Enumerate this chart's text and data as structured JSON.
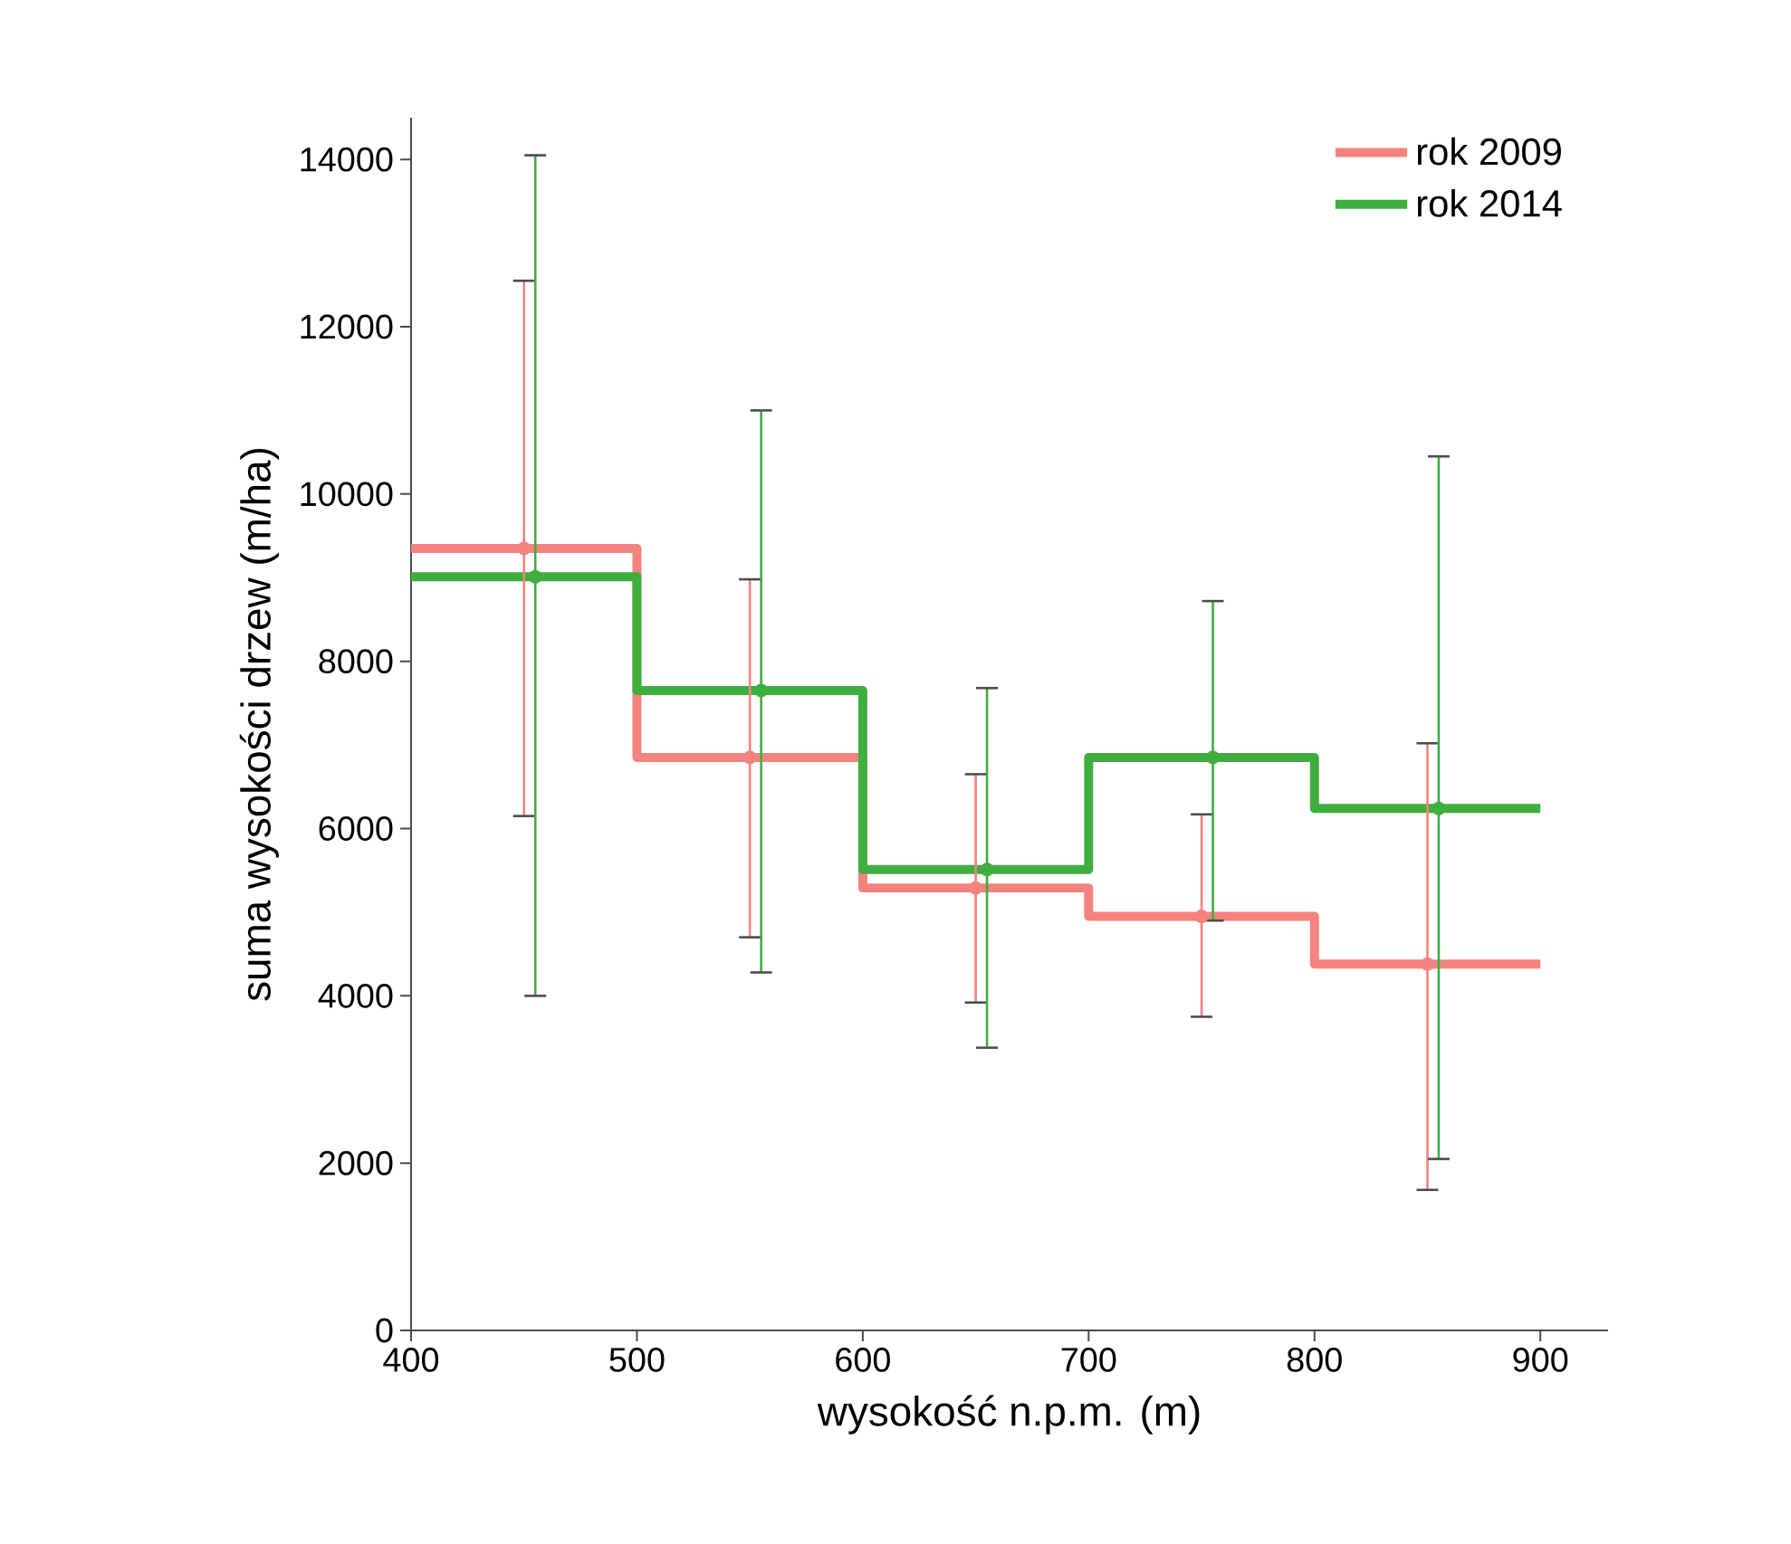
{
  "chart_data": {
    "type": "step",
    "xlabel": "wysokość n.p.m. (m)",
    "ylabel": "suma wysokości drzew (m/ha)",
    "xlim": [
      400,
      930
    ],
    "ylim": [
      0,
      14500
    ],
    "xticks": [
      400,
      500,
      600,
      700,
      800,
      900
    ],
    "yticks": [
      0,
      2000,
      4000,
      6000,
      8000,
      10000,
      12000,
      14000
    ],
    "grid": false,
    "legend": "top right",
    "line_style": "solid",
    "series": [
      {
        "name": "rok 2009",
        "color": "#f4837d",
        "x": [
          400,
          500,
          600,
          700,
          800,
          900
        ],
        "values": [
          9350,
          6850,
          5290,
          4950,
          4380,
          4380
        ]
      },
      {
        "name": "rok 2014",
        "color": "#3fae3f",
        "x": [
          400,
          500,
          600,
          700,
          800,
          900
        ],
        "values": [
          9010,
          7650,
          5510,
          6850,
          6240,
          6240
        ]
      },
      {
        "type": "scatter",
        "color": "#f4837d",
        "x": [
          450,
          550,
          650,
          750,
          850
        ],
        "values": [
          9350,
          6850,
          5290,
          4950,
          4380
        ],
        "errors": [
          [
            6150,
            12550
          ],
          [
            4700,
            8980
          ],
          [
            3920,
            6650
          ],
          [
            3750,
            6170
          ],
          [
            1680,
            7020
          ]
        ]
      },
      {
        "type": "scatter",
        "color": "#3fae3f",
        "x": [
          455,
          555,
          655,
          755,
          855
        ],
        "values": [
          9010,
          7650,
          5510,
          6850,
          6240
        ],
        "errors": [
          [
            4000,
            14050
          ],
          [
            4280,
            11000
          ],
          [
            3380,
            7680
          ],
          [
            4900,
            8720
          ],
          [
            2050,
            10450
          ]
        ]
      }
    ]
  }
}
